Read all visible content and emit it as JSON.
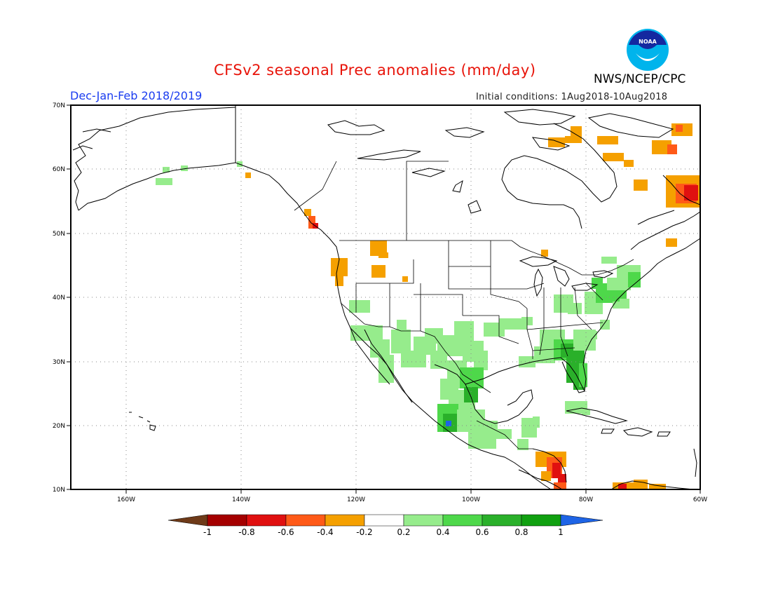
{
  "header": {
    "title": "CFSv2 seasonal Prec anomalies (mm/day)",
    "agency": "NWS/NCEP/CPC",
    "season": "Dec-Jan-Feb 2018/2019",
    "initial_conditions": "Initial conditions:  1Aug2018-10Aug2018",
    "logo_text": "NOAA"
  },
  "axes": {
    "y_ticks": [
      "70N",
      "60N",
      "50N",
      "40N",
      "30N",
      "20N",
      "10N"
    ],
    "x_ticks": [
      "160W",
      "140W",
      "120W",
      "100W",
      "80W",
      "60W"
    ]
  },
  "colorbar": {
    "labels": [
      "-1",
      "-0.8",
      "-0.6",
      "-0.4",
      "-0.2",
      "0.2",
      "0.4",
      "0.6",
      "0.8",
      "1"
    ],
    "colors": {
      "below_min": "#6e3a18",
      "bins": [
        "#a50000",
        "#e01010",
        "#ff5a18",
        "#f5a000",
        "#ffffff",
        "#96ec8c",
        "#4ed84a",
        "#2ab02a",
        "#10a010"
      ],
      "above_max": "#1e64e6"
    }
  },
  "colors": {
    "dry": "#f5a000",
    "drier": "#ff5a18",
    "driest": "#e01010",
    "wet": "#96ec8c",
    "wetter": "#4ed84a",
    "wettest": "#2ab02a",
    "extreme_wet": "#1e64e6"
  }
}
